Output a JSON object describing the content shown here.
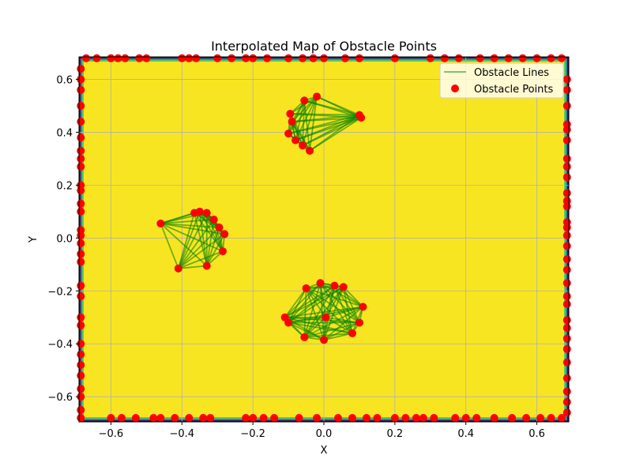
{
  "chart_data": {
    "type": "scatter",
    "title": "Interpolated Map of Obstacle Points",
    "xlabel": "X",
    "ylabel": "Y",
    "xlim": [
      -0.69,
      0.69
    ],
    "ylim": [
      -0.695,
      0.685
    ],
    "xticks": [
      -0.6,
      -0.4,
      -0.2,
      0.0,
      0.2,
      0.4,
      0.6
    ],
    "xtick_labels": [
      "−0.6",
      "−0.4",
      "−0.2",
      "0.0",
      "0.2",
      "0.4",
      "0.6"
    ],
    "yticks": [
      -0.6,
      -0.4,
      -0.2,
      0.0,
      0.2,
      0.4,
      0.6
    ],
    "ytick_labels": [
      "−0.6",
      "−0.4",
      "−0.2",
      "0.0",
      "0.2",
      "0.4",
      "0.6"
    ],
    "grid": true,
    "legend_position": "top-right",
    "background_field": {
      "colormap": "viridis",
      "interior_color": "#f8e521",
      "edge_color": "#440154"
    },
    "series": [
      {
        "name": "Obstacle Lines",
        "kind": "line",
        "color": "#008000"
      },
      {
        "name": "Obstacle Points",
        "kind": "scatter",
        "color": "#ff0000"
      }
    ],
    "obstacles": [
      {
        "points": [
          [
            -0.46,
            0.055
          ],
          [
            -0.41,
            -0.115
          ],
          [
            -0.365,
            0.095
          ],
          [
            -0.35,
            0.1
          ],
          [
            -0.33,
            0.095
          ],
          [
            -0.31,
            0.07
          ],
          [
            -0.295,
            0.04
          ],
          [
            -0.28,
            0.015
          ],
          [
            -0.285,
            -0.05
          ],
          [
            -0.33,
            -0.105
          ]
        ]
      },
      {
        "points": [
          [
            -0.1,
            0.395
          ],
          [
            -0.095,
            0.47
          ],
          [
            -0.09,
            0.44
          ],
          [
            -0.08,
            0.37
          ],
          [
            -0.06,
            0.35
          ],
          [
            -0.055,
            0.52
          ],
          [
            -0.04,
            0.33
          ],
          [
            -0.02,
            0.535
          ],
          [
            0.1,
            0.465
          ],
          [
            0.105,
            0.455
          ]
        ]
      },
      {
        "points": [
          [
            -0.11,
            -0.3
          ],
          [
            -0.1,
            -0.32
          ],
          [
            -0.055,
            -0.375
          ],
          [
            -0.05,
            -0.19
          ],
          [
            -0.01,
            -0.17
          ],
          [
            0.0,
            -0.385
          ],
          [
            0.03,
            -0.18
          ],
          [
            0.055,
            -0.185
          ],
          [
            0.08,
            -0.36
          ],
          [
            0.1,
            -0.32
          ],
          [
            0.11,
            -0.26
          ],
          [
            0.005,
            -0.3
          ]
        ]
      }
    ],
    "boundary_points": {
      "top": [
        -0.67,
        -0.64,
        -0.6,
        -0.58,
        -0.56,
        -0.52,
        -0.5,
        -0.4,
        -0.38,
        -0.36,
        -0.3,
        -0.26,
        -0.22,
        -0.2,
        -0.16,
        -0.1,
        -0.06,
        -0.03,
        0.0,
        0.06,
        0.1,
        0.2,
        0.3,
        0.34,
        0.38,
        0.44,
        0.48,
        0.52,
        0.56,
        0.6,
        0.64,
        0.67
      ],
      "bottom": [
        -0.6,
        -0.57,
        -0.53,
        -0.48,
        -0.46,
        -0.42,
        -0.38,
        -0.34,
        -0.32,
        -0.22,
        -0.2,
        -0.17,
        -0.14,
        -0.07,
        -0.02,
        0.04,
        0.08,
        0.12,
        0.15,
        0.2,
        0.23,
        0.26,
        0.28,
        0.31,
        0.37,
        0.4,
        0.43,
        0.48,
        0.53,
        0.57,
        0.61,
        0.64,
        0.67
      ],
      "left": [
        0.64,
        0.6,
        0.56,
        0.5,
        0.44,
        0.38,
        0.33,
        0.3,
        0.27,
        0.2,
        0.18,
        0.13,
        0.1,
        0.03,
        0.01,
        -0.02,
        -0.06,
        -0.09,
        -0.18,
        -0.22,
        -0.3,
        -0.33,
        -0.4,
        -0.44,
        -0.48,
        -0.52,
        -0.57,
        -0.6,
        -0.65,
        -0.68
      ],
      "right": [
        0.6,
        0.56,
        0.5,
        0.43,
        0.41,
        0.37,
        0.3,
        0.27,
        0.23,
        0.17,
        0.14,
        0.12,
        0.06,
        0.04,
        0.01,
        -0.03,
        -0.08,
        -0.12,
        -0.17,
        -0.22,
        -0.25,
        -0.31,
        -0.34,
        -0.38,
        -0.42,
        -0.47,
        -0.53,
        -0.58,
        -0.62,
        -0.66
      ]
    }
  }
}
